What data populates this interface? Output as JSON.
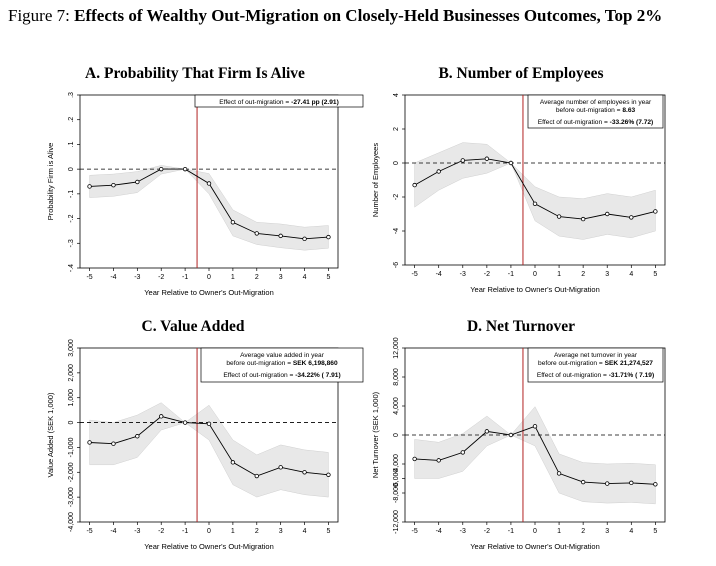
{
  "figure": {
    "label": "Figure 7:",
    "title": "Effects of Wealthy Out-Migration on Closely-Held Businesses Outcomes, Top 2%"
  },
  "chart_data": [
    {
      "type": "line",
      "title": "A. Probability That Firm Is Alive",
      "xlabel": "Year Relative to Owner's Out-Migration",
      "ylabel": "Probability Firm is Alive",
      "x": [
        -5,
        -4,
        -3,
        -2,
        -1,
        0,
        1,
        2,
        3,
        4,
        5
      ],
      "xticks": [
        "-5",
        "-4",
        "-3",
        "-2",
        "-1",
        "0",
        "1",
        "2",
        "3",
        "4",
        "5"
      ],
      "ylim": [
        -0.4,
        0.3
      ],
      "yticks": [
        -0.4,
        -0.3,
        -0.2,
        -0.1,
        0,
        0.1,
        0.2,
        0.3
      ],
      "ytick_labels": [
        "-.4",
        "-.3",
        "-.2",
        "-.1",
        "0",
        ".1",
        ".2",
        ".3"
      ],
      "values": [
        -0.07,
        -0.065,
        -0.052,
        0.0,
        0.0,
        -0.058,
        -0.215,
        -0.26,
        -0.27,
        -0.282,
        -0.275
      ],
      "ci_low": [
        -0.115,
        -0.11,
        -0.095,
        -0.02,
        0.0,
        -0.1,
        -0.27,
        -0.305,
        -0.318,
        -0.328,
        -0.32
      ],
      "ci_high": [
        -0.025,
        -0.02,
        -0.01,
        0.015,
        0.0,
        -0.018,
        -0.165,
        -0.215,
        -0.222,
        -0.235,
        -0.228
      ],
      "ytick_rotated": true,
      "annotation": [
        {
          "text": "Effect of out-migration = ",
          "bold": "-27.41 pp (2.91)"
        }
      ],
      "grid": false,
      "reference_lines": {
        "horizontal": 0,
        "vertical": -0.5
      }
    },
    {
      "type": "line",
      "title": "B. Number of Employees",
      "xlabel": "Year Relative to Owner's Out-Migration",
      "ylabel": "Number of Employees",
      "x": [
        -5,
        -4,
        -3,
        -2,
        -1,
        0,
        1,
        2,
        3,
        4,
        5
      ],
      "xticks": [
        "-5",
        "-4",
        "-3",
        "-2",
        "-1",
        "0",
        "1",
        "2",
        "3",
        "4",
        "5"
      ],
      "ylim": [
        -6,
        4
      ],
      "yticks": [
        -6,
        -4,
        -2,
        0,
        2,
        4
      ],
      "ytick_labels": [
        "-6",
        "-4",
        "-2",
        "0",
        "2",
        "4"
      ],
      "values": [
        -1.3,
        -0.5,
        0.15,
        0.25,
        0.0,
        -2.4,
        -3.15,
        -3.3,
        -3.0,
        -3.2,
        -2.85
      ],
      "ci_low": [
        -2.6,
        -1.6,
        -0.9,
        -0.6,
        0.0,
        -3.4,
        -4.3,
        -4.5,
        -4.2,
        -4.4,
        -4.0
      ],
      "ci_high": [
        0.0,
        0.6,
        1.2,
        1.1,
        0.0,
        -1.4,
        -2.0,
        -2.1,
        -1.8,
        -2.0,
        -1.6
      ],
      "ytick_rotated": true,
      "annotation": [
        {
          "text": "Average number of employees in year",
          "bold": ""
        },
        {
          "text": "before out-migration = ",
          "bold": "8.63"
        },
        {
          "text": "Effect of out-migration = ",
          "bold": "-33.26% (7.72)"
        }
      ],
      "grid": false,
      "reference_lines": {
        "horizontal": 0,
        "vertical": -0.5
      }
    },
    {
      "type": "line",
      "title": "C. Value Added",
      "xlabel": "Year Relative to Owner's Out-Migration",
      "ylabel": "Value Added (SEK 1,000)",
      "x": [
        -5,
        -4,
        -3,
        -2,
        -1,
        0,
        1,
        2,
        3,
        4,
        5
      ],
      "xticks": [
        "-5",
        "-4",
        "-3",
        "-2",
        "-1",
        "0",
        "1",
        "2",
        "3",
        "4",
        "5"
      ],
      "ylim": [
        -4000,
        3000
      ],
      "yticks": [
        -4000,
        -3000,
        -2000,
        -1000,
        0,
        1000,
        2000,
        3000
      ],
      "ytick_labels": [
        "-4,000",
        "-3,000",
        "-2,000",
        "-1,000",
        "0",
        "1,000",
        "2,000",
        "3,000"
      ],
      "values": [
        -800,
        -850,
        -550,
        250,
        0,
        -50,
        -1600,
        -2150,
        -1800,
        -2000,
        -2100
      ],
      "ci_low": [
        -1700,
        -1700,
        -1400,
        -300,
        0,
        -700,
        -2500,
        -3000,
        -2700,
        -2900,
        -3000
      ],
      "ci_high": [
        100,
        0,
        300,
        800,
        0,
        700,
        -700,
        -1300,
        -900,
        -1100,
        -1200
      ],
      "ytick_rotated": true,
      "annotation": [
        {
          "text": "Average value added in year",
          "bold": ""
        },
        {
          "text": "before out-migration = ",
          "bold": "SEK  6,198,860"
        },
        {
          "text": "Effect of out-migration = ",
          "bold": "-34.22% ( 7.91)"
        }
      ],
      "grid": false,
      "reference_lines": {
        "horizontal": 0,
        "vertical": -0.5
      }
    },
    {
      "type": "line",
      "title": "D. Net Turnover",
      "xlabel": "Year Relative to Owner's Out-Migration",
      "ylabel": "Net Turnover (SEK 1,000)",
      "x": [
        -5,
        -4,
        -3,
        -2,
        -1,
        0,
        1,
        2,
        3,
        4,
        5
      ],
      "xticks": [
        "-5",
        "-4",
        "-3",
        "-2",
        "-1",
        "0",
        "1",
        "2",
        "3",
        "4",
        "5"
      ],
      "ylim": [
        -12000,
        12000
      ],
      "yticks": [
        -12000,
        -8000,
        -6000,
        -4000,
        0,
        4000,
        8000,
        12000
      ],
      "ytick_labels": [
        "-12,000",
        "-8,000",
        "-6,000",
        "-4,000",
        "0",
        "4,000",
        "8,000",
        "12,000"
      ],
      "values": [
        -3300,
        -3500,
        -2400,
        500,
        0,
        1200,
        -5300,
        -6500,
        -6700,
        -6600,
        -6800
      ],
      "ci_low": [
        -6000,
        -6000,
        -5000,
        -1500,
        0,
        -1500,
        -8000,
        -9200,
        -9400,
        -9300,
        -9500
      ],
      "ci_high": [
        -600,
        -1000,
        200,
        2600,
        0,
        3900,
        -2600,
        -3800,
        -4000,
        -3900,
        -4100
      ],
      "ytick_rotated": true,
      "annotation": [
        {
          "text": "Average net turnover in year",
          "bold": ""
        },
        {
          "text": "before out-migration = ",
          "bold": "SEK  21,274,527"
        },
        {
          "text": "Effect of out-migration = ",
          "bold": "-31.71% ( 7.19)"
        }
      ],
      "grid": false,
      "reference_lines": {
        "horizontal": 0,
        "vertical": -0.5
      }
    }
  ],
  "colors": {
    "ci_band": "#e8e8e8",
    "line": "#000000",
    "vline": "#b22222",
    "zero_line": "#000000"
  }
}
